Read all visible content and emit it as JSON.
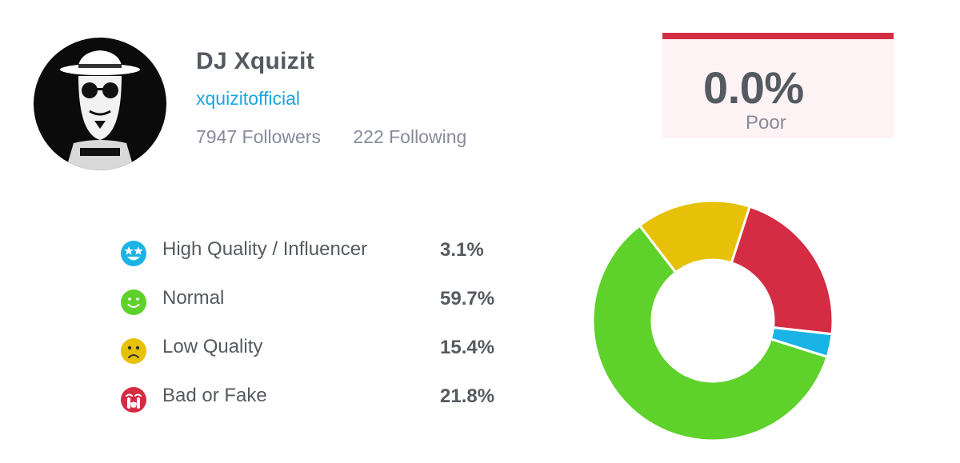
{
  "profile": {
    "display_name": "DJ Xquizit",
    "handle": "xquizitofficial",
    "followers_text": "7947 Followers",
    "following_text": "222 Following",
    "avatar_icon": "dj-hat-sunglasses-avatar"
  },
  "score": {
    "value": "0.0%",
    "rating": "Poor",
    "accent_color": "#d42c43"
  },
  "legend": [
    {
      "label": "High Quality / Influencer",
      "value": "3.1%",
      "icon": "star-eyes-face-icon",
      "color": "#1ab3e6"
    },
    {
      "label": "Normal",
      "value": "59.7%",
      "icon": "smile-face-icon",
      "color": "#5fd12b"
    },
    {
      "label": "Low Quality",
      "value": "15.4%",
      "icon": "sad-face-icon",
      "color": "#e6c107"
    },
    {
      "label": "Bad or Fake",
      "value": "21.8%",
      "icon": "crying-face-icon",
      "color": "#d42c43"
    }
  ],
  "chart_data": {
    "type": "pie",
    "categories": [
      "High Quality / Influencer",
      "Normal",
      "Low Quality",
      "Bad or Fake"
    ],
    "values": [
      3.1,
      59.7,
      15.4,
      21.8
    ],
    "colors": [
      "#1ab3e6",
      "#5fd12b",
      "#e6c107",
      "#d42c43"
    ],
    "donut": true,
    "title": "",
    "legend_position": "left"
  }
}
